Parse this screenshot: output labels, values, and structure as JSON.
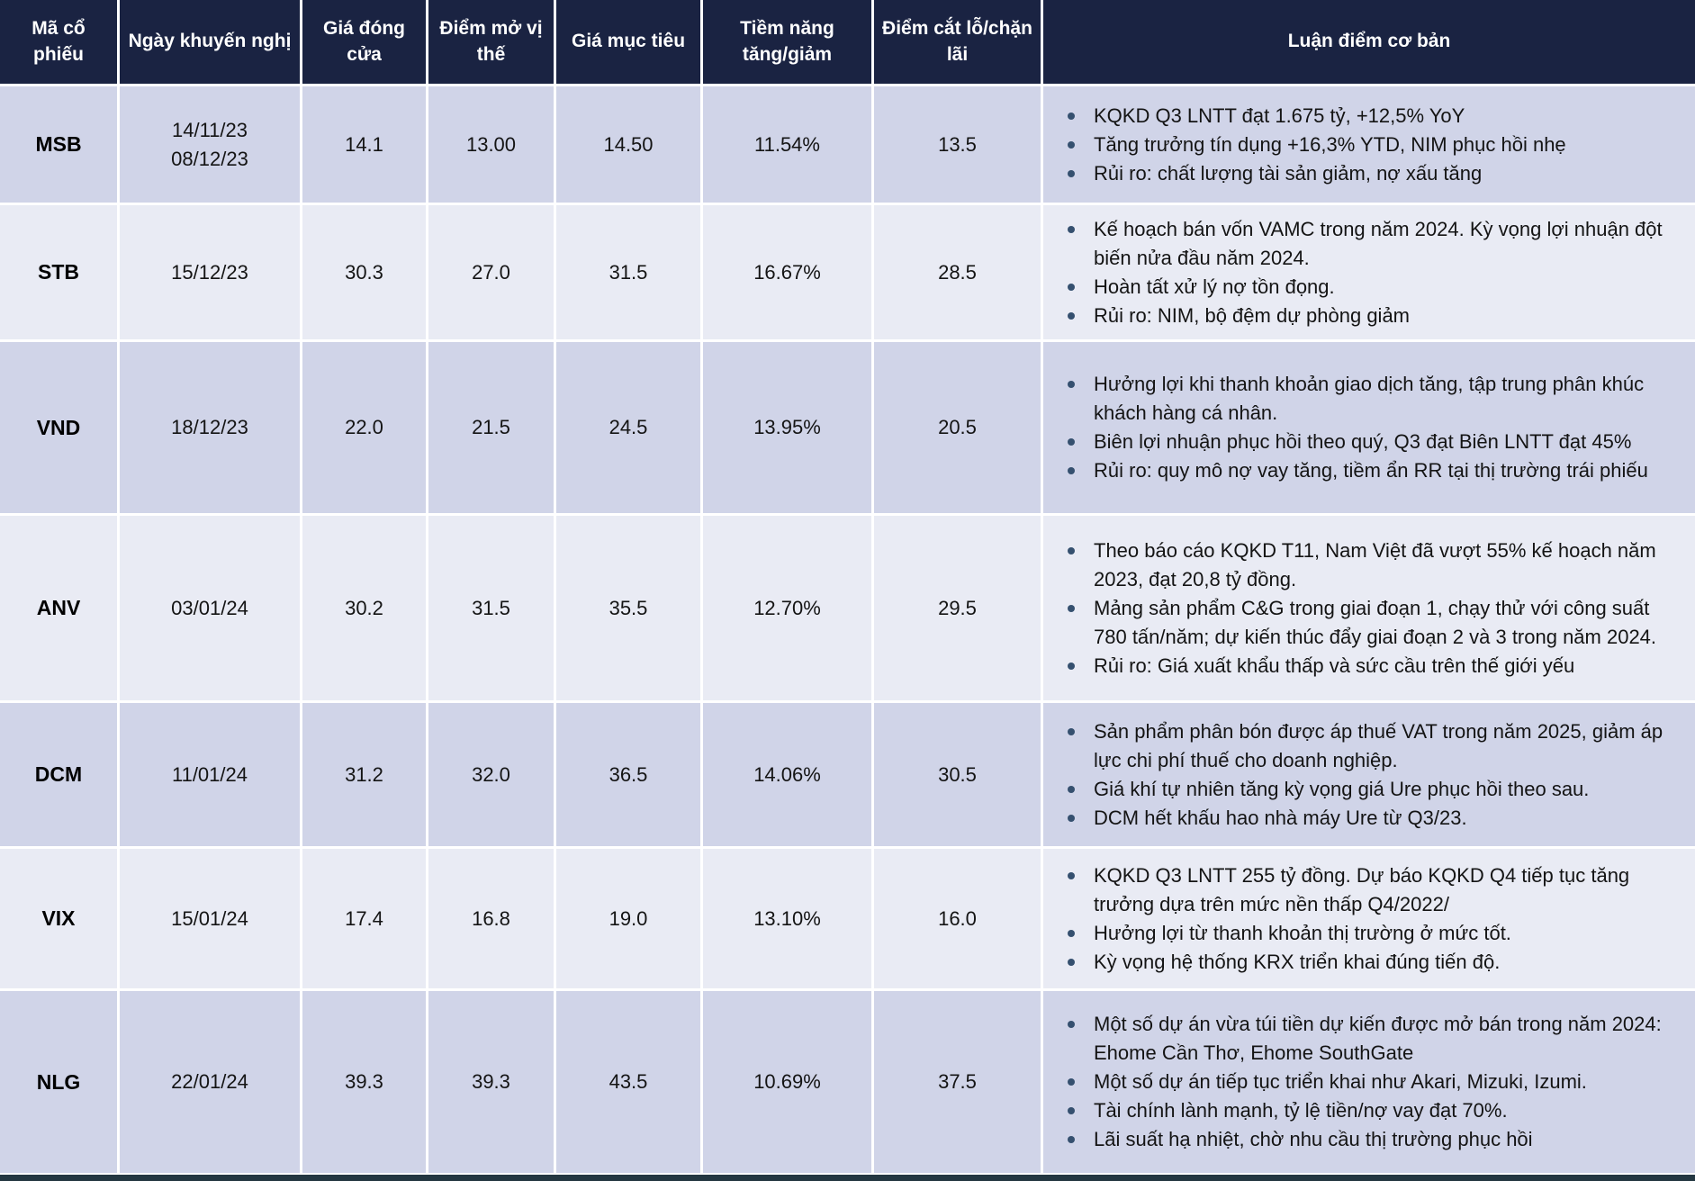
{
  "colors": {
    "header_bg": "#1A2342",
    "header_text": "#FFFFFF",
    "row_dark": "#D0D4E8",
    "row_light": "#E9EBF4",
    "body_text": "#141414",
    "bullet": "#35506F",
    "bottom_bar": "#243741"
  },
  "table": {
    "columns": [
      {
        "key": "code",
        "label": "Mã cổ phiếu"
      },
      {
        "key": "date",
        "label": "Ngày khuyến nghị"
      },
      {
        "key": "close",
        "label": "Giá đóng cửa"
      },
      {
        "key": "entry",
        "label": "Điểm mở vị thế"
      },
      {
        "key": "target",
        "label": "Giá mục tiêu"
      },
      {
        "key": "upside",
        "label": "Tiềm năng tăng/giảm"
      },
      {
        "key": "stop",
        "label": "Điểm cắt lỗ/chặn lãi"
      },
      {
        "key": "thesis",
        "label": "Luận điểm cơ bản"
      }
    ],
    "rows": [
      {
        "code": "MSB",
        "date": "14/11/23\n08/12/23",
        "close": "14.1",
        "entry": "13.00",
        "target": "14.50",
        "upside": "11.54%",
        "stop": "13.5",
        "thesis": [
          "KQKD Q3 LNTT đạt 1.675 tỷ, +12,5% YoY",
          "Tăng trưởng tín dụng +16,3% YTD, NIM phục hồi nhẹ",
          "Rủi ro: chất lượng tài sản giảm, nợ xấu tăng"
        ]
      },
      {
        "code": "STB",
        "date": "15/12/23",
        "close": "30.3",
        "entry": "27.0",
        "target": "31.5",
        "upside": "16.67%",
        "stop": "28.5",
        "thesis": [
          "Kế hoạch bán vốn VAMC trong năm 2024. Kỳ vọng lợi nhuận đột biến nửa đầu năm 2024.",
          "Hoàn tất xử lý nợ tồn đọng.",
          "Rủi ro: NIM, bộ đệm dự phòng giảm"
        ]
      },
      {
        "code": "VND",
        "date": "18/12/23",
        "close": "22.0",
        "entry": "21.5",
        "target": "24.5",
        "upside": "13.95%",
        "stop": "20.5",
        "thesis": [
          "Hưởng lợi khi thanh khoản giao dịch tăng, tập trung phân khúc khách hàng cá nhân.",
          "Biên lợi nhuận phục hồi theo quý, Q3 đạt Biên LNTT đạt 45%",
          "Rủi ro: quy mô nợ vay tăng, tiềm ẩn RR tại thị trường trái phiếu"
        ]
      },
      {
        "code": "ANV",
        "date": "03/01/24",
        "close": "30.2",
        "entry": "31.5",
        "target": "35.5",
        "upside": "12.70%",
        "stop": "29.5",
        "thesis": [
          "Theo báo cáo KQKD T11, Nam Việt đã vượt 55% kế hoạch năm 2023, đạt 20,8 tỷ đồng.",
          "Mảng sản phẩm C&G trong giai đoạn 1, chạy thử với công suất 780 tấn/năm; dự kiến thúc đẩy giai đoạn 2 và 3 trong năm 2024.",
          "Rủi ro: Giá xuất khẩu thấp và sức cầu trên thế giới yếu"
        ]
      },
      {
        "code": "DCM",
        "date": "11/01/24",
        "close": "31.2",
        "entry": "32.0",
        "target": "36.5",
        "upside": "14.06%",
        "stop": "30.5",
        "thesis": [
          "Sản phẩm phân bón được áp thuế VAT trong năm 2025, giảm áp lực chi phí thuế cho doanh nghiệp.",
          "Giá khí tự nhiên tăng kỳ vọng giá Ure phục hồi theo sau.",
          "DCM hết khấu hao nhà máy Ure từ Q3/23."
        ]
      },
      {
        "code": "VIX",
        "date": "15/01/24",
        "close": "17.4",
        "entry": "16.8",
        "target": "19.0",
        "upside": "13.10%",
        "stop": "16.0",
        "thesis": [
          "KQKD Q3 LNTT 255 tỷ đồng. Dự báo KQKD Q4 tiếp tục tăng trưởng dựa trên mức nền thấp Q4/2022/",
          " Hưởng lợi từ thanh khoản thị trường ở mức tốt.",
          "Kỳ vọng hệ thống KRX triển khai đúng tiến độ."
        ]
      },
      {
        "code": "NLG",
        "date": "22/01/24",
        "close": "39.3",
        "entry": "39.3",
        "target": "43.5",
        "upside": "10.69%",
        "stop": "37.5",
        "thesis": [
          "Một số dự án vừa túi tiền dự kiến được mở bán trong năm 2024: Ehome Cần Thơ, Ehome SouthGate",
          "Một số dự án tiếp tục triển khai như Akari, Mizuki, Izumi.",
          "Tài chính lành mạnh, tỷ lệ tiền/nợ vay đạt 70%.",
          "Lãi suất hạ nhiệt, chờ nhu cầu thị trường phục hồi"
        ]
      }
    ]
  }
}
